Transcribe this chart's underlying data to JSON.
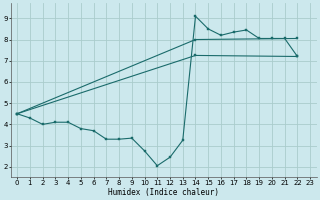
{
  "xlabel": "Humidex (Indice chaleur)",
  "bg_color": "#cce8ed",
  "grid_color": "#aacccc",
  "line_color": "#1a6b6b",
  "xlim": [
    -0.5,
    23.5
  ],
  "ylim": [
    1.5,
    9.7
  ],
  "xticks": [
    0,
    1,
    2,
    3,
    4,
    5,
    6,
    7,
    8,
    9,
    10,
    11,
    12,
    13,
    14,
    15,
    16,
    17,
    18,
    19,
    20,
    21,
    22,
    23
  ],
  "yticks": [
    2,
    3,
    4,
    5,
    6,
    7,
    8,
    9
  ],
  "line1_x": [
    0,
    1,
    2,
    3,
    4,
    5,
    6,
    7,
    8,
    9,
    10,
    11,
    12,
    13,
    14,
    15,
    16,
    17,
    18,
    19,
    20,
    21,
    22
  ],
  "line1_y": [
    4.5,
    4.3,
    4.0,
    4.1,
    4.1,
    3.8,
    3.7,
    3.3,
    3.3,
    3.35,
    2.75,
    2.05,
    2.45,
    3.25,
    9.1,
    8.5,
    8.2,
    8.35,
    8.45,
    8.05,
    8.05,
    8.05,
    7.2
  ],
  "line2_x": [
    0,
    14,
    22
  ],
  "line2_y": [
    4.5,
    7.25,
    7.2
  ],
  "line3_x": [
    0,
    14,
    22
  ],
  "line3_y": [
    4.5,
    8.0,
    8.05
  ]
}
